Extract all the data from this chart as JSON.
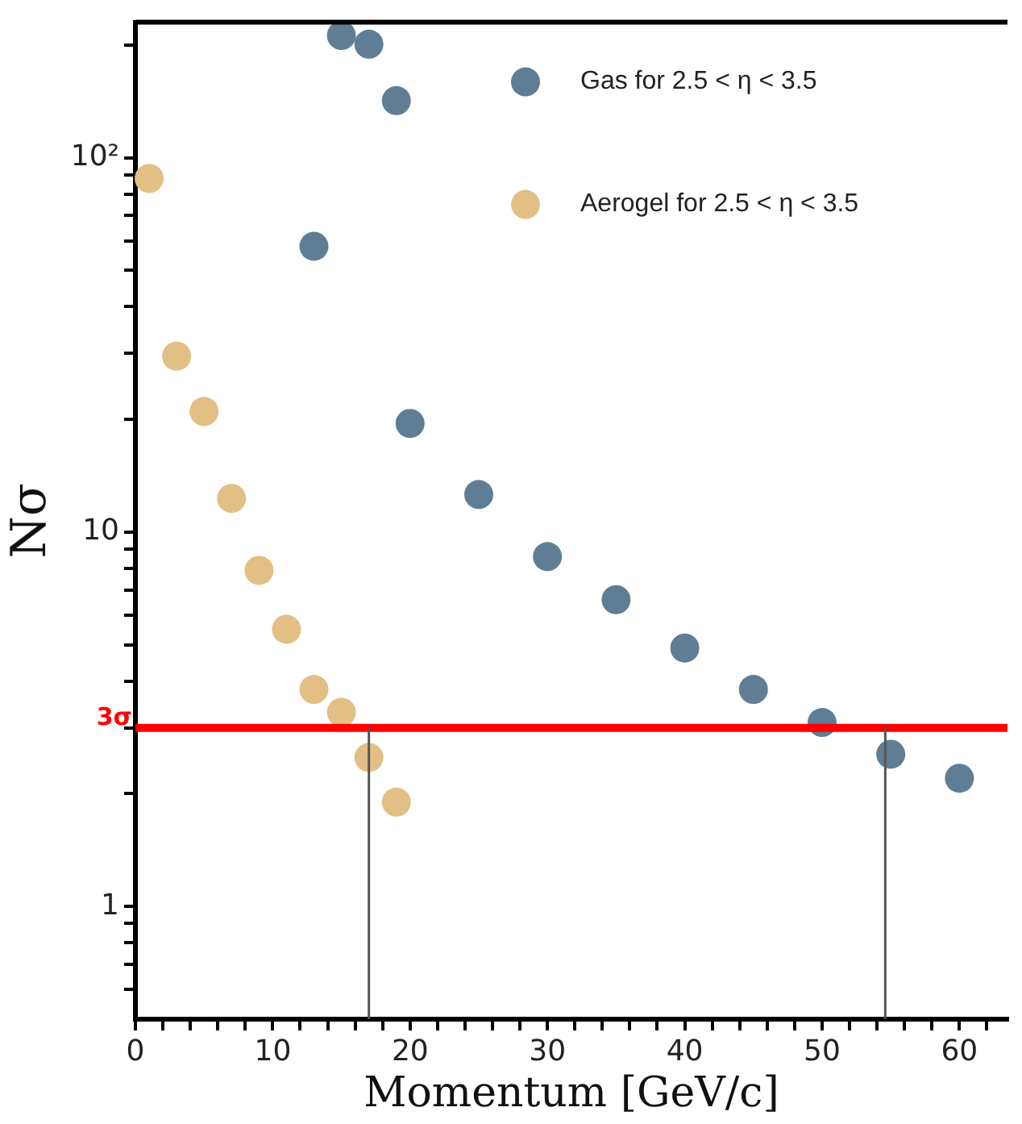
{
  "chart_data": {
    "type": "scatter",
    "xlabel": "Momentum [GeV/c]",
    "ylabel": "Nσ",
    "log": "y",
    "grid": false,
    "legend": "top right",
    "marker": "circle",
    "xlim": [
      0,
      63.5
    ],
    "xticks": [
      0,
      {
        "value": 2,
        "label": null
      },
      {
        "value": 4,
        "label": null
      },
      {
        "value": 6,
        "label": null
      },
      {
        "value": 8,
        "label": null
      },
      10,
      {
        "value": 12,
        "label": null
      },
      {
        "value": 14,
        "label": null
      },
      {
        "value": 16,
        "label": null
      },
      {
        "value": 18,
        "label": null
      },
      20,
      {
        "value": 22,
        "label": null
      },
      {
        "value": 24,
        "label": null
      },
      {
        "value": 26,
        "label": null
      },
      {
        "value": 28,
        "label": null
      },
      30,
      {
        "value": 32,
        "label": null
      },
      {
        "value": 34,
        "label": null
      },
      {
        "value": 36,
        "label": null
      },
      {
        "value": 38,
        "label": null
      },
      40,
      {
        "value": 42,
        "label": null
      },
      {
        "value": 44,
        "label": null
      },
      {
        "value": 46,
        "label": null
      },
      {
        "value": 48,
        "label": null
      },
      50,
      {
        "value": 52,
        "label": null
      },
      {
        "value": 54,
        "label": null
      },
      {
        "value": 56,
        "label": null
      },
      {
        "value": 58,
        "label": null
      },
      60,
      {
        "value": 62,
        "label": null
      }
    ],
    "ylim": [
      0.5,
      230
    ],
    "yticks": [
      {
        "value": 0.6,
        "label": null
      },
      {
        "value": 0.7,
        "label": null
      },
      {
        "value": 0.8,
        "label": null
      },
      {
        "value": 0.9,
        "label": null
      },
      1,
      {
        "value": 2,
        "label": null
      },
      {
        "value": 3,
        "label": null
      },
      {
        "value": 4,
        "label": null
      },
      {
        "value": 5,
        "label": null
      },
      {
        "value": 6,
        "label": null
      },
      {
        "value": 7,
        "label": null
      },
      {
        "value": 8,
        "label": null
      },
      {
        "value": 9,
        "label": null
      },
      10,
      {
        "value": 20,
        "label": null
      },
      {
        "value": 30,
        "label": null
      },
      {
        "value": 40,
        "label": null
      },
      {
        "value": 50,
        "label": null
      },
      {
        "value": 60,
        "label": null
      },
      {
        "value": 70,
        "label": null
      },
      {
        "value": 80,
        "label": null
      },
      {
        "value": 90,
        "label": null
      },
      {
        "value": 100,
        "label": "10²"
      },
      {
        "value": 200,
        "label": null
      }
    ],
    "series": [
      {
        "name": "Gas for 2.5 < η < 3.5",
        "color": "#5f7e95",
        "x": [
          13,
          15,
          17,
          19,
          20,
          25,
          30,
          35,
          40,
          45,
          50,
          55,
          60
        ],
        "values": [
          58,
          212,
          201,
          142,
          19.5,
          12.6,
          8.6,
          6.6,
          4.9,
          3.8,
          3.1,
          2.55,
          2.2
        ]
      },
      {
        "name": "Aerogel for 2.5 < η < 3.5",
        "color": "#e2bf85",
        "x": [
          1,
          3,
          5,
          7,
          9,
          11,
          13,
          15,
          17,
          19
        ],
        "values": [
          88,
          29.5,
          21,
          12.3,
          7.9,
          5.5,
          3.8,
          3.3,
          2.5,
          1.9
        ]
      }
    ],
    "ref_lines": [
      {
        "axis": "y",
        "value": 3,
        "label": "3σ",
        "color": "#ff0000"
      },
      {
        "axis": "x",
        "value": 17,
        "color": "#555555"
      },
      {
        "axis": "x",
        "value": 54.6,
        "color": "#555555"
      }
    ]
  }
}
